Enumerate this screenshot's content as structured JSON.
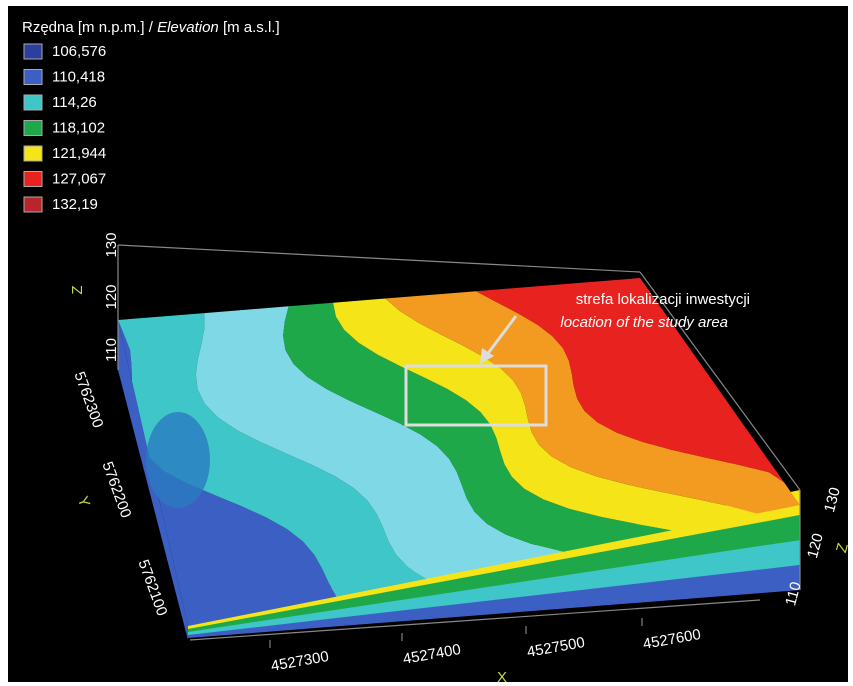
{
  "legend": {
    "title_pl": "Rzędna [m n.p.m.] /",
    "title_en": "Elevation",
    "title_unit": "[m a.s.l.]",
    "items": [
      {
        "label": "106,576",
        "color": "#2b3f9e"
      },
      {
        "label": "110,418",
        "color": "#3c5fc4"
      },
      {
        "label": "114,26",
        "color": "#3ec6c8"
      },
      {
        "label": "118,102",
        "color": "#1fa84a"
      },
      {
        "label": "121,944",
        "color": "#f4e418"
      },
      {
        "label": "127,067",
        "color": "#e8231f"
      },
      {
        "label": "132,19",
        "color": "#b8262b"
      }
    ]
  },
  "annotation": {
    "text_pl": "strefa lokalizacji inwestycji",
    "text_en": "location of the study area"
  },
  "axes": {
    "x": {
      "label": "X",
      "ticks": [
        "4527300",
        "4527400",
        "4527500",
        "4527600"
      ]
    },
    "y": {
      "label": "Y",
      "ticks": [
        "5762300",
        "5762200",
        "5762100"
      ]
    },
    "z_left": {
      "label": "Z",
      "ticks": [
        "130",
        "120",
        "110"
      ]
    },
    "z_right": {
      "label": "Z",
      "ticks": [
        "130",
        "120",
        "110"
      ]
    }
  }
}
